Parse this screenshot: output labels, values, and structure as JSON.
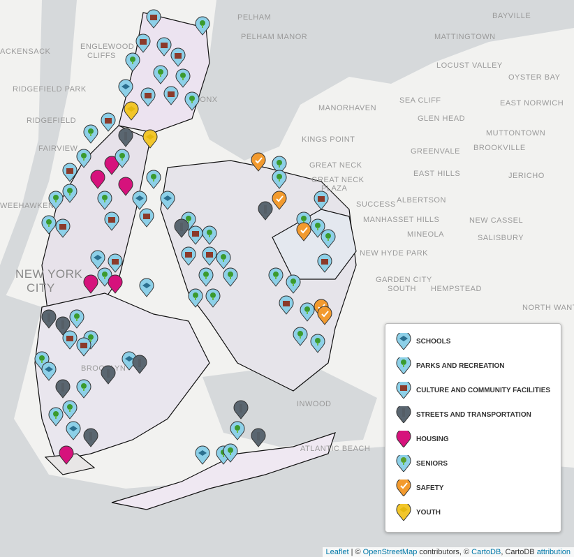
{
  "map": {
    "places": [
      "BAYVILLE",
      "PELHAM",
      "PELHAM MANOR",
      "MATTINGTOWN",
      "ACKENSACK",
      "ENGLEWOOD",
      "CLIFFS",
      "LOCUST VALLEY",
      "OYSTER BAY",
      "RIDGEFIELD PARK",
      "BRONX",
      "SEA CLIFF",
      "EAST NORWICH",
      "MANORHAVEN",
      "GLEN HEAD",
      "RIDGEFIELD",
      "MUTTONTOWN",
      "FAIRVIEW",
      "KINGS POINT",
      "GREENVALE",
      "BROOKVILLE",
      "GREAT NECK",
      "GREAT NECK",
      "PLAZA",
      "EAST HILLS",
      "JERICHO",
      "WEEHAWKEN",
      "SUCCESS",
      "ALBERTSON",
      "MANHASSET HILLS",
      "MINEOLA",
      "NEW CASSEL",
      "NEW HYDE PARK",
      "SALISBURY",
      "NEW YORK",
      "CITY",
      "GARDEN CITY",
      "SOUTH",
      "HEMPSTEAD",
      "NORTH WANTAGH",
      "INWOOD",
      "ATLANTIC BEACH",
      "BROOKLYN"
    ],
    "legend": [
      "SCHOOLS",
      "PARKS AND RECREATION",
      "CULTURE AND COMMUNITY FACILITIES",
      "STREETS AND TRANSPORTATION",
      "HOUSING",
      "SENIORS",
      "SAFETY",
      "YOUTH"
    ],
    "attribution": {
      "leaflet": "Leaflet",
      "sep1": " | © ",
      "osm": "OpenStreetMap",
      "sep2": " contributors, © ",
      "cartodb": "CartoDB",
      "sep3": ", CartoDB ",
      "link": "attribution"
    }
  }
}
